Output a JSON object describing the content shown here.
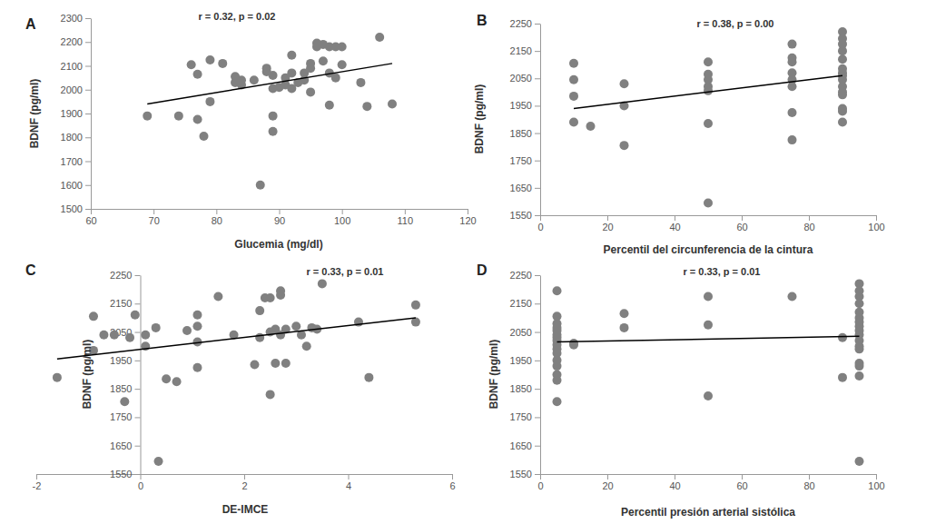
{
  "chart_data": [
    {
      "type": "scatter",
      "title": "A",
      "x_label": "Glucemia (mg/dl)",
      "y_label": "BDNF (pg/ml)",
      "annotations": [
        "r = 0.32, p = 0.02"
      ],
      "color": "#808080",
      "x": [
        69,
        74,
        76,
        77,
        77,
        78,
        79,
        79,
        81,
        83,
        83,
        84,
        84,
        86,
        87,
        88,
        88,
        89,
        89,
        89,
        89,
        90,
        91,
        91,
        92,
        92,
        92,
        93,
        94,
        94,
        95,
        95,
        95,
        96,
        96,
        97,
        97,
        98,
        98,
        98,
        99,
        99,
        100,
        100,
        103,
        104,
        106,
        108
      ],
      "y": [
        1890,
        1890,
        2105,
        2065,
        1875,
        1805,
        2125,
        1950,
        2110,
        2055,
        2030,
        2020,
        2040,
        2040,
        1600,
        2090,
        2075,
        2060,
        2005,
        1890,
        1825,
        2010,
        2050,
        2020,
        2145,
        2005,
        2070,
        2030,
        2040,
        2070,
        2090,
        2110,
        1990,
        2180,
        2195,
        2190,
        2120,
        2180,
        2070,
        1935,
        2180,
        2050,
        2180,
        2105,
        2030,
        1930,
        2220,
        1940
      ],
      "trendline": {
        "x": [
          69,
          108
        ],
        "y": [
          1940,
          2110
        ],
        "color": "#000000"
      },
      "xlim": [
        60,
        120
      ],
      "xticks": [
        60,
        70,
        80,
        90,
        100,
        110,
        120
      ],
      "ylim": [
        1500,
        2300
      ],
      "yticks": [
        1500,
        1600,
        1700,
        1800,
        1900,
        2000,
        2100,
        2200,
        2300
      ]
    },
    {
      "type": "scatter",
      "title": "B",
      "x_label": "Percentil del circunferencia de la cintura",
      "y_label": "BDNF (pg/ml)",
      "annotations": [
        "r = 0.38, p = 0.00"
      ],
      "color": "#808080",
      "x": [
        10,
        10,
        10,
        10,
        15,
        25,
        25,
        25,
        50,
        50,
        50,
        50,
        50,
        50,
        50,
        75,
        75,
        75,
        75,
        75,
        75,
        75,
        75,
        90,
        90,
        90,
        90,
        90,
        90,
        90,
        90,
        90,
        90,
        90,
        90,
        90,
        90,
        90
      ],
      "y": [
        2105,
        2045,
        1985,
        1890,
        1875,
        2030,
        1950,
        1805,
        2110,
        2065,
        2045,
        2020,
        2005,
        1885,
        1595,
        2175,
        2125,
        2110,
        2070,
        2045,
        2020,
        1925,
        1825,
        2220,
        2195,
        2175,
        2150,
        2120,
        2085,
        2070,
        2060,
        2045,
        2020,
        2000,
        1990,
        1940,
        1930,
        1890
      ],
      "trendline": {
        "x": [
          10,
          90
        ],
        "y": [
          1940,
          2060
        ],
        "color": "#000000"
      },
      "xlim": [
        0,
        100
      ],
      "xticks": [
        0,
        20,
        40,
        60,
        80,
        100
      ],
      "ylim": [
        1550,
        2250
      ],
      "yticks": [
        1550,
        1650,
        1750,
        1850,
        1950,
        2050,
        2150,
        2250
      ]
    },
    {
      "type": "scatter",
      "title": "C",
      "x_label": "DE-IMCE",
      "y_label": "BDNF (pg/ml)",
      "annotations": [
        "r = 0.33, p = 0.01"
      ],
      "color": "#808080",
      "x": [
        -1.6,
        -0.9,
        -0.9,
        -0.7,
        -0.5,
        -0.3,
        -0.2,
        -0.1,
        0.1,
        0.1,
        0.3,
        0.35,
        0.5,
        0.7,
        0.9,
        1.1,
        1.1,
        1.1,
        1.1,
        1.5,
        1.8,
        2.2,
        2.3,
        2.3,
        2.4,
        2.5,
        2.5,
        2.5,
        2.6,
        2.6,
        2.7,
        2.7,
        2.7,
        2.8,
        2.8,
        3.0,
        3.1,
        3.2,
        3.3,
        3.4,
        3.5,
        4.2,
        4.4,
        5.3,
        5.3
      ],
      "y": [
        1890,
        2105,
        1985,
        2040,
        2040,
        1805,
        2030,
        2110,
        2040,
        2000,
        2065,
        1595,
        1885,
        1875,
        2055,
        2110,
        2070,
        2015,
        1925,
        2175,
        2040,
        1935,
        2125,
        2030,
        2170,
        2170,
        2050,
        1830,
        2060,
        1940,
        2195,
        2180,
        2040,
        2060,
        1940,
        2070,
        2040,
        2000,
        2065,
        2060,
        2220,
        2085,
        1890,
        2145,
        2085
      ],
      "trendline": {
        "x": [
          -1.6,
          5.3
        ],
        "y": [
          1955,
          2100
        ],
        "color": "#000000"
      },
      "xlim": [
        -2,
        6
      ],
      "xticks": [
        -2,
        0,
        2,
        4,
        6
      ],
      "ylim": [
        1550,
        2250
      ],
      "yticks": [
        1550,
        1650,
        1750,
        1850,
        1950,
        2050,
        2150,
        2250
      ]
    },
    {
      "type": "scatter",
      "title": "D",
      "x_label": "Percentil presión arterial sistólica",
      "y_label": "BDNF (pg/ml)",
      "annotations": [
        "r = 0.33, p = 0.01"
      ],
      "color": "#808080",
      "x": [
        5,
        5,
        5,
        5,
        5,
        5,
        5,
        5,
        5,
        5,
        5,
        5,
        5,
        5,
        5,
        5,
        10,
        10,
        25,
        25,
        50,
        50,
        50,
        75,
        90,
        90,
        95,
        95,
        95,
        95,
        95,
        95,
        95,
        95,
        95,
        95,
        95,
        95,
        95,
        95,
        95,
        95,
        95
      ],
      "y": [
        2195,
        2105,
        2080,
        2065,
        2055,
        2040,
        2030,
        2020,
        2005,
        1990,
        1975,
        1950,
        1930,
        1900,
        1880,
        1805,
        2010,
        2005,
        2115,
        2065,
        2175,
        2075,
        1825,
        2175,
        2030,
        1890,
        2220,
        2195,
        2175,
        2150,
        2120,
        2100,
        2085,
        2070,
        2055,
        2040,
        2020,
        2000,
        1990,
        1940,
        1930,
        1895,
        1595
      ],
      "trendline": {
        "x": [
          5,
          95
        ],
        "y": [
          2015,
          2035
        ],
        "color": "#000000"
      },
      "xlim": [
        0,
        100
      ],
      "xticks": [
        0,
        20,
        40,
        60,
        80,
        100
      ],
      "ylim": [
        1550,
        2250
      ],
      "yticks": [
        1550,
        1650,
        1750,
        1850,
        1950,
        2050,
        2150,
        2250
      ]
    }
  ]
}
